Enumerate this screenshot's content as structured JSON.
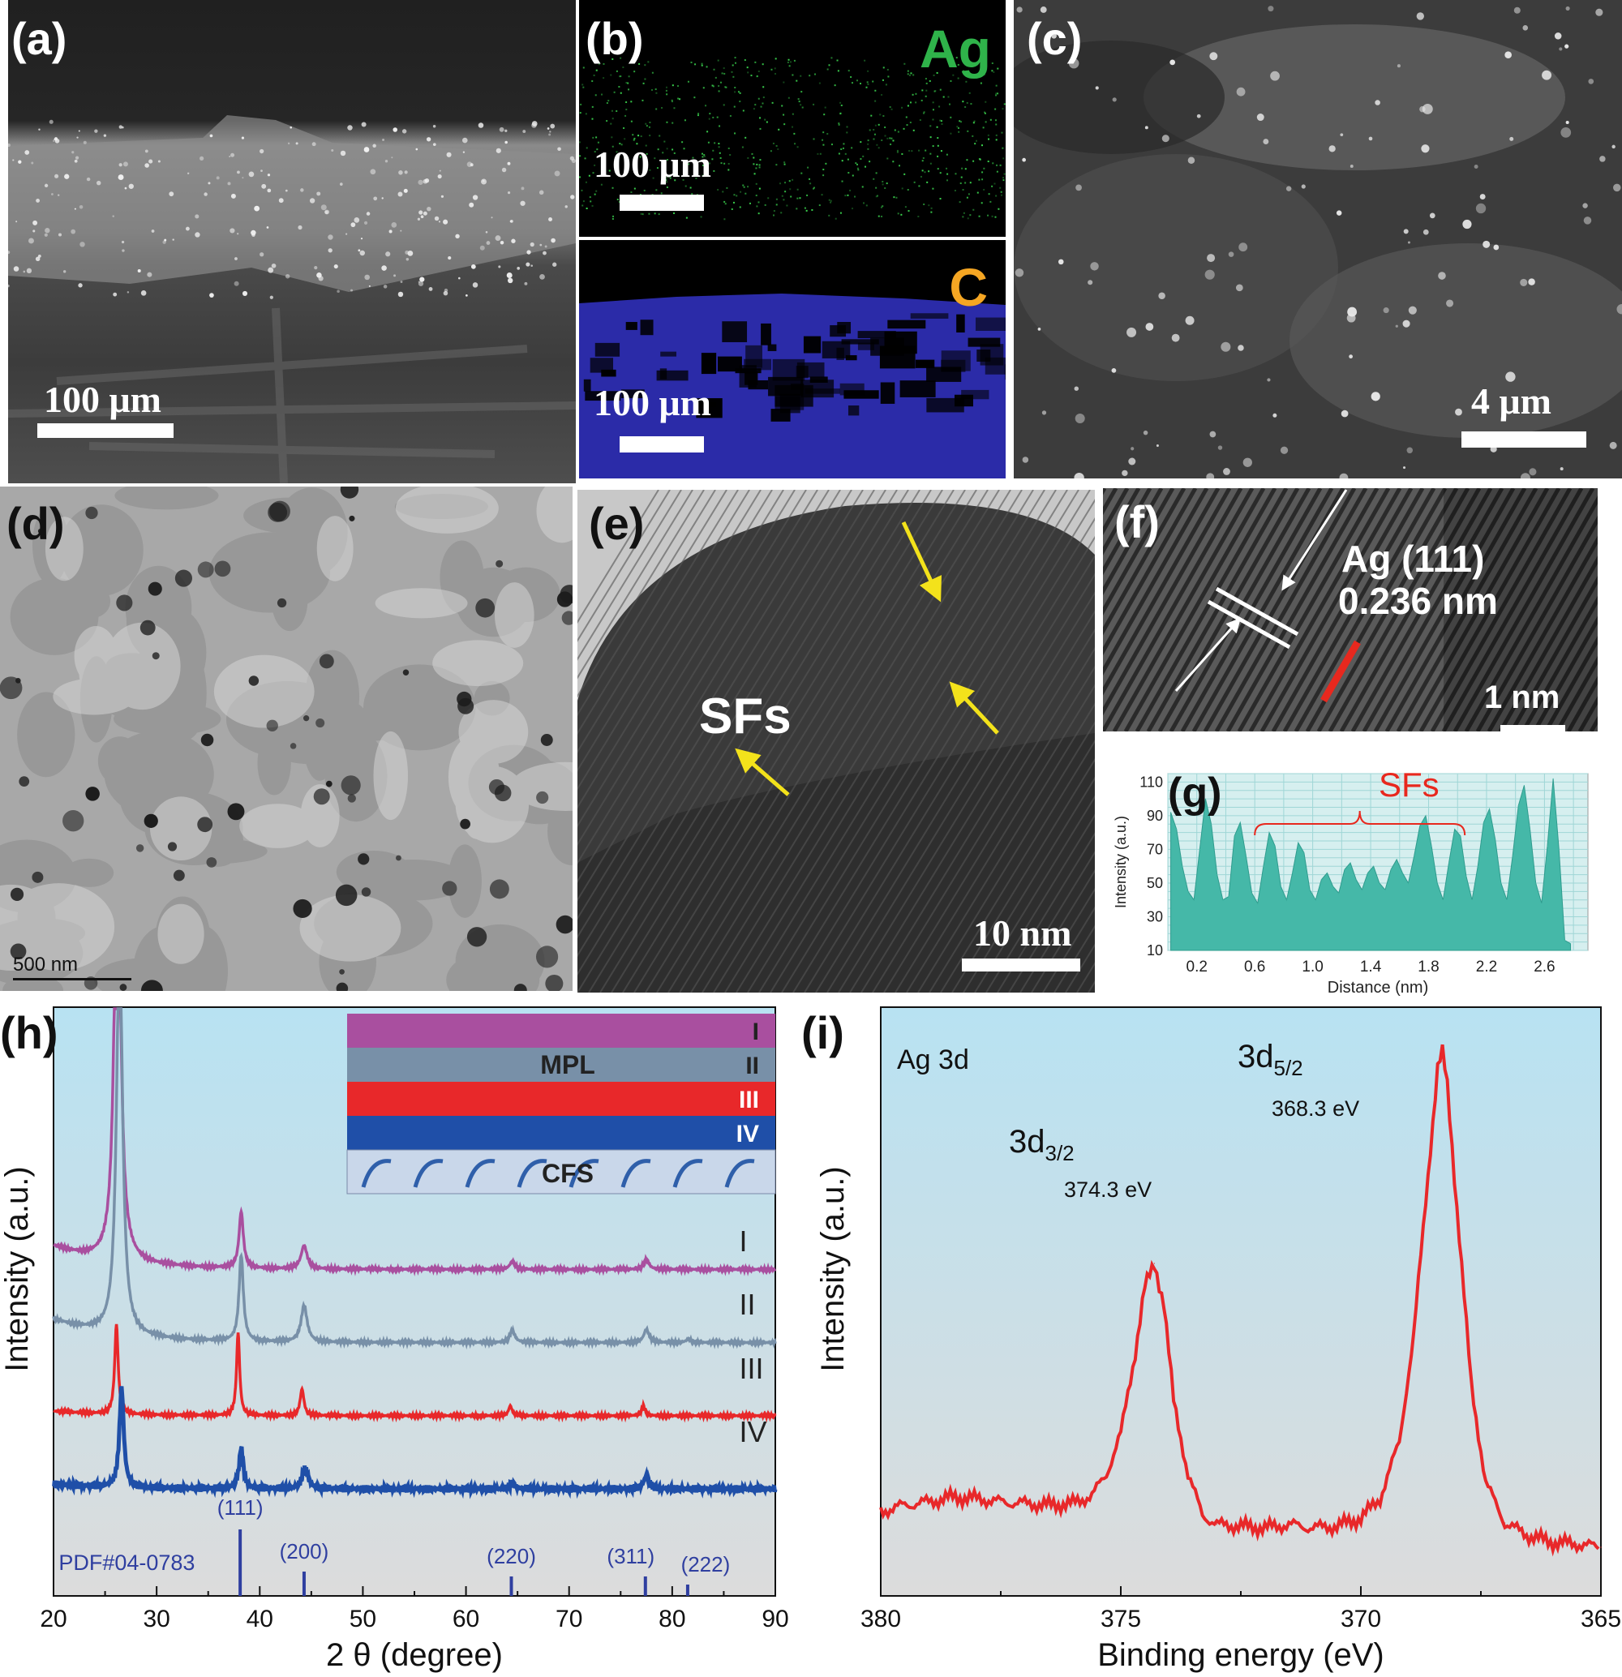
{
  "panels": {
    "a": {
      "label": "(a)",
      "scale_bar": "100 μm"
    },
    "b": {
      "label": "(b)",
      "element_top": "Ag",
      "element_bottom": "C",
      "scale_bar_top": "100 μm",
      "scale_bar_bottom": "100 μm",
      "colors": {
        "Ag": "#2fb34a",
        "C": "#f5a623",
        "map_ag": "#3bd64f",
        "map_c": "#2b2ba8"
      }
    },
    "c": {
      "label": "(c)",
      "scale_bar": "4 μm"
    },
    "d": {
      "label": "(d)",
      "scale_bar": "500 nm"
    },
    "e": {
      "label": "(e)",
      "annotation": "SFs",
      "scale_bar": "10 nm",
      "arrow_color": "#f3e21b"
    },
    "f": {
      "label": "(f)",
      "annotation_line1": "Ag (111)",
      "annotation_line2": "0.236 nm",
      "scale_bar": "1 nm",
      "line_color": "#e8281e"
    },
    "g": {
      "label": "(g)",
      "annotation": "SFs"
    },
    "h": {
      "label": "(h)",
      "inset": {
        "layers": [
          "I",
          "II",
          "III",
          "IV"
        ],
        "mpl": "MPL",
        "cfs": "CFS",
        "colors": [
          "#a94f9f",
          "#7890a8",
          "#e8282a",
          "#1f4fa8",
          "#c9d7ea"
        ]
      },
      "curve_labels": [
        "I",
        "II",
        "III",
        "IV"
      ],
      "reference_label": "PDF#04-0783",
      "reference_peaks": [
        {
          "label": "(111)",
          "x": 38.1
        },
        {
          "label": "(200)",
          "x": 44.3
        },
        {
          "label": "(220)",
          "x": 64.4
        },
        {
          "label": "(311)",
          "x": 77.4
        },
        {
          "label": "(222)",
          "x": 81.5
        }
      ]
    },
    "i": {
      "label": "(i)",
      "title": "Ag 3d",
      "peaks": [
        {
          "label_main": "3d",
          "label_sub": "3/2",
          "energy": "374.3 eV"
        },
        {
          "label_main": "3d",
          "label_sub": "5/2",
          "energy": "368.3 eV"
        }
      ]
    }
  },
  "chart_data": [
    {
      "id": "g",
      "type": "bar",
      "xlabel": "Distance (nm)",
      "ylabel": "Intensity (a.u.)",
      "xlim": [
        0,
        2.9
      ],
      "ylim": [
        10,
        115
      ],
      "xticks": [
        "0.2",
        "0.6",
        "1.0",
        "1.4",
        "1.8",
        "2.2",
        "2.6"
      ],
      "yticks": [
        "10",
        "30",
        "50",
        "70",
        "90",
        "110"
      ],
      "grid": true,
      "color": "#45b8a8",
      "x": [
        0.02,
        0.06,
        0.1,
        0.14,
        0.18,
        0.22,
        0.26,
        0.3,
        0.34,
        0.38,
        0.42,
        0.46,
        0.5,
        0.54,
        0.58,
        0.62,
        0.66,
        0.7,
        0.74,
        0.78,
        0.82,
        0.86,
        0.9,
        0.94,
        0.98,
        1.02,
        1.06,
        1.1,
        1.14,
        1.18,
        1.22,
        1.26,
        1.3,
        1.34,
        1.38,
        1.42,
        1.46,
        1.5,
        1.54,
        1.58,
        1.62,
        1.66,
        1.7,
        1.74,
        1.78,
        1.82,
        1.86,
        1.9,
        1.94,
        1.98,
        2.02,
        2.06,
        2.1,
        2.14,
        2.18,
        2.22,
        2.26,
        2.3,
        2.34,
        2.38,
        2.42,
        2.46,
        2.5,
        2.54,
        2.58,
        2.62,
        2.66,
        2.7,
        2.74,
        2.78
      ],
      "y": [
        92,
        82,
        60,
        45,
        40,
        70,
        100,
        85,
        55,
        40,
        42,
        78,
        86,
        66,
        44,
        38,
        60,
        80,
        72,
        48,
        40,
        56,
        74,
        68,
        46,
        40,
        52,
        56,
        48,
        44,
        58,
        62,
        52,
        46,
        56,
        60,
        50,
        46,
        58,
        64,
        56,
        50,
        66,
        84,
        90,
        72,
        50,
        40,
        62,
        82,
        78,
        54,
        40,
        60,
        86,
        94,
        76,
        50,
        40,
        66,
        96,
        108,
        82,
        50,
        38,
        72,
        112,
        70,
        16,
        14
      ]
    },
    {
      "id": "h",
      "type": "line",
      "xlabel": "2 θ (degree)",
      "ylabel": "Intensity (a.u.)",
      "xlim": [
        20,
        90
      ],
      "xticks": [
        20,
        30,
        40,
        50,
        60,
        70,
        80,
        90
      ],
      "series": [
        {
          "name": "I",
          "color": "#a94f9f",
          "offset": 3.3,
          "peaks": [
            {
              "x": 26.2,
              "h": 7.0,
              "w": 0.35
            },
            {
              "x": 38.2,
              "h": 0.85,
              "w": 0.25
            },
            {
              "x": 44.3,
              "h": 0.35,
              "w": 0.35
            },
            {
              "x": 64.5,
              "h": 0.12,
              "w": 0.3
            },
            {
              "x": 77.5,
              "h": 0.15,
              "w": 0.3
            }
          ]
        },
        {
          "name": "II",
          "color": "#7890a8",
          "offset": 2.2,
          "peaks": [
            {
              "x": 26.4,
              "h": 6.0,
              "w": 0.35
            },
            {
              "x": 38.2,
              "h": 1.3,
              "w": 0.25
            },
            {
              "x": 44.3,
              "h": 0.55,
              "w": 0.35
            },
            {
              "x": 64.5,
              "h": 0.18,
              "w": 0.3
            },
            {
              "x": 77.5,
              "h": 0.2,
              "w": 0.3
            },
            {
              "x": 81.6,
              "h": 0.05,
              "w": 0.3
            }
          ]
        },
        {
          "name": "III",
          "color": "#e8282a",
          "offset": 1.1,
          "peaks": [
            {
              "x": 26.1,
              "h": 1.35,
              "w": 0.2
            },
            {
              "x": 37.9,
              "h": 1.25,
              "w": 0.18
            },
            {
              "x": 44.1,
              "h": 0.4,
              "w": 0.22
            },
            {
              "x": 64.3,
              "h": 0.15,
              "w": 0.2
            },
            {
              "x": 77.2,
              "h": 0.15,
              "w": 0.2
            }
          ]
        },
        {
          "name": "IV",
          "color": "#1f4fa8",
          "offset": 0.0,
          "peaks": [
            {
              "x": 26.6,
              "h": 1.5,
              "w": 0.25
            },
            {
              "x": 38.2,
              "h": 0.6,
              "w": 0.25
            },
            {
              "x": 44.4,
              "h": 0.3,
              "w": 0.35
            },
            {
              "x": 64.5,
              "h": 0.08,
              "w": 0.3
            },
            {
              "x": 77.5,
              "h": 0.2,
              "w": 0.3
            }
          ]
        }
      ]
    },
    {
      "id": "i",
      "type": "line",
      "xlabel": "Binding energy (eV)",
      "ylabel": "Intensity (a.u.)",
      "xlim": [
        380,
        365
      ],
      "xticks": [
        380,
        375,
        370,
        365
      ],
      "series": [
        {
          "name": "Ag 3d",
          "color": "#e8282a",
          "x": [
            380,
            379.5,
            379,
            378.5,
            378,
            377.5,
            377,
            376.5,
            376,
            375.6,
            375.3,
            375.0,
            374.7,
            374.5,
            374.3,
            374.1,
            373.9,
            373.6,
            373.3,
            373,
            372.5,
            372,
            371.5,
            371,
            370.5,
            370,
            369.6,
            369.2,
            368.9,
            368.6,
            368.4,
            368.3,
            368.2,
            368.0,
            367.7,
            367.4,
            367,
            366.5,
            366,
            365.5,
            365
          ],
          "y": [
            0.32,
            0.36,
            0.38,
            0.41,
            0.4,
            0.38,
            0.37,
            0.36,
            0.37,
            0.42,
            0.55,
            0.8,
            1.3,
            1.7,
            1.85,
            1.6,
            1.0,
            0.55,
            0.3,
            0.24,
            0.23,
            0.22,
            0.24,
            0.22,
            0.23,
            0.28,
            0.4,
            0.75,
            1.4,
            2.4,
            3.05,
            3.15,
            2.95,
            2.2,
            1.1,
            0.5,
            0.25,
            0.17,
            0.13,
            0.12,
            0.1
          ]
        }
      ]
    }
  ]
}
